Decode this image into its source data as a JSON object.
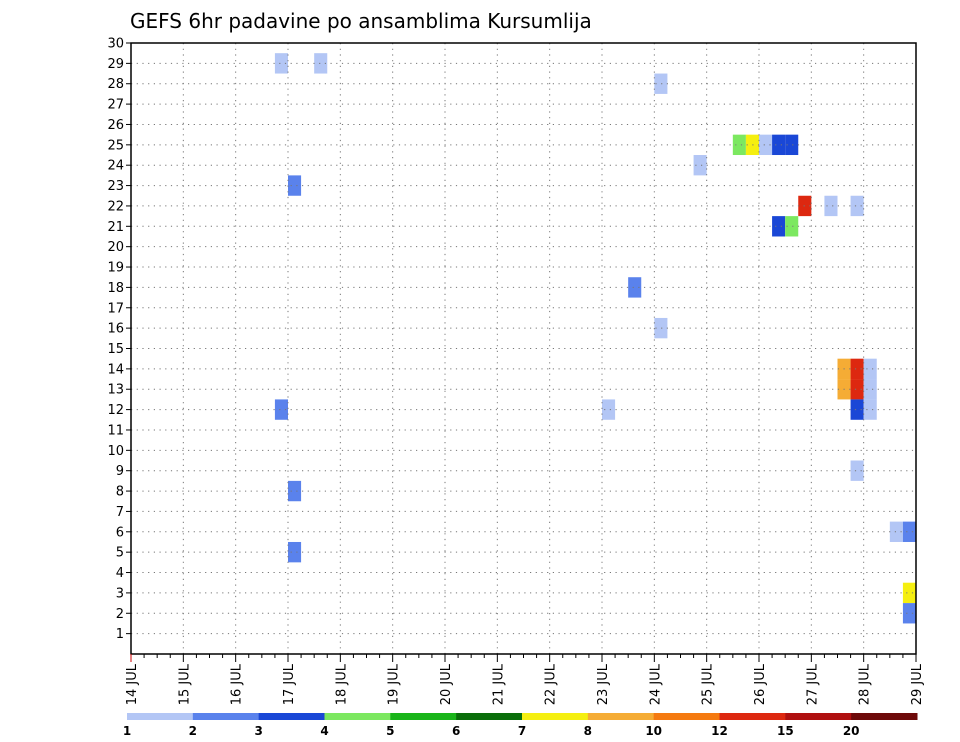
{
  "chart_data": {
    "type": "heatmap",
    "title": "GEFS 6hr padavine po ansamblima Kursumlija",
    "xlabel": "",
    "ylabel": "",
    "x_tick_labels": [
      "14 JUL",
      "15 JUL",
      "16 JUL",
      "17 JUL",
      "18 JUL",
      "19 JUL",
      "20 JUL",
      "21 JUL",
      "22 JUL",
      "23 JUL",
      "24 JUL",
      "25 JUL",
      "26 JUL",
      "27 JUL",
      "28 JUL",
      "29 JUL"
    ],
    "y_ticks": [
      1,
      2,
      3,
      4,
      5,
      6,
      7,
      8,
      9,
      10,
      11,
      12,
      13,
      14,
      15,
      16,
      17,
      18,
      19,
      20,
      21,
      22,
      23,
      24,
      25,
      26,
      27,
      28,
      29,
      30
    ],
    "xlim": [
      "14 JUL 00Z",
      "29 JUL 00Z"
    ],
    "ylim": [
      0,
      30
    ],
    "grid": true,
    "cell_hours": 6,
    "colorbar": {
      "labels": [
        "1",
        "2",
        "3",
        "4",
        "5",
        "6",
        "7",
        "8",
        "10",
        "12",
        "15",
        "20"
      ],
      "colors": [
        "#b3c6f5",
        "#5a82ec",
        "#1a47d6",
        "#7ce860",
        "#1ab51a",
        "#0a6e0a",
        "#f5ef10",
        "#f5ac35",
        "#f57a10",
        "#dd2810",
        "#b01010",
        "#6e0a0a"
      ],
      "position": "bottom"
    },
    "points": [
      {
        "member": 29,
        "time": "16 JUL 18Z",
        "value": 1
      },
      {
        "member": 29,
        "time": "17 JUL 12Z",
        "value": 1
      },
      {
        "member": 28,
        "time": "24 JUL 00Z",
        "value": 1
      },
      {
        "member": 25,
        "time": "25 JUL 12Z",
        "value": 4
      },
      {
        "member": 25,
        "time": "25 JUL 18Z",
        "value": 7
      },
      {
        "member": 25,
        "time": "26 JUL 00Z",
        "value": 1
      },
      {
        "member": 25,
        "time": "26 JUL 06Z",
        "value": 3
      },
      {
        "member": 25,
        "time": "26 JUL 12Z",
        "value": 3
      },
      {
        "member": 24,
        "time": "24 JUL 18Z",
        "value": 1
      },
      {
        "member": 23,
        "time": "17 JUL 00Z",
        "value": 2
      },
      {
        "member": 22,
        "time": "26 JUL 18Z",
        "value": 12
      },
      {
        "member": 22,
        "time": "27 JUL 06Z",
        "value": 1
      },
      {
        "member": 22,
        "time": "27 JUL 18Z",
        "value": 1
      },
      {
        "member": 21,
        "time": "26 JUL 06Z",
        "value": 3
      },
      {
        "member": 21,
        "time": "26 JUL 12Z",
        "value": 4
      },
      {
        "member": 18,
        "time": "23 JUL 12Z",
        "value": 2
      },
      {
        "member": 16,
        "time": "24 JUL 00Z",
        "value": 1
      },
      {
        "member": 14,
        "time": "27 JUL 12Z",
        "value": 8
      },
      {
        "member": 14,
        "time": "27 JUL 18Z",
        "value": 12
      },
      {
        "member": 14,
        "time": "28 JUL 00Z",
        "value": 1
      },
      {
        "member": 13,
        "time": "27 JUL 12Z",
        "value": 8
      },
      {
        "member": 13,
        "time": "27 JUL 18Z",
        "value": 12
      },
      {
        "member": 13,
        "time": "28 JUL 00Z",
        "value": 1
      },
      {
        "member": 12,
        "time": "16 JUL 18Z",
        "value": 2
      },
      {
        "member": 12,
        "time": "23 JUL 00Z",
        "value": 1
      },
      {
        "member": 12,
        "time": "27 JUL 18Z",
        "value": 3
      },
      {
        "member": 12,
        "time": "28 JUL 00Z",
        "value": 1
      },
      {
        "member": 9,
        "time": "27 JUL 18Z",
        "value": 1
      },
      {
        "member": 8,
        "time": "17 JUL 00Z",
        "value": 2
      },
      {
        "member": 6,
        "time": "28 JUL 12Z",
        "value": 1
      },
      {
        "member": 6,
        "time": "28 JUL 18Z",
        "value": 2
      },
      {
        "member": 5,
        "time": "17 JUL 00Z",
        "value": 2
      },
      {
        "member": 3,
        "time": "28 JUL 18Z",
        "value": 7
      },
      {
        "member": 2,
        "time": "28 JUL 18Z",
        "value": 2
      }
    ]
  }
}
